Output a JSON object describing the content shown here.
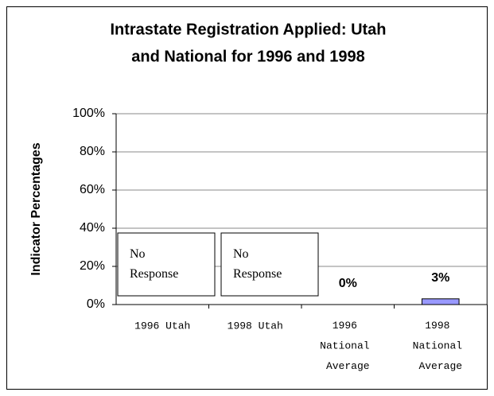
{
  "chart_data": {
    "type": "bar",
    "title": [
      "Intrastate Registration Applied: Utah",
      "and National for 1996 and 1998"
    ],
    "y_label": "Indicator Percentages",
    "categories": [
      "1996 Utah",
      "1998 Utah",
      "1996 National Average",
      "1998 National Average"
    ],
    "values": [
      null,
      null,
      0,
      3
    ],
    "value_labels": [
      null,
      null,
      "0%",
      "3%"
    ],
    "annotations": [
      "No Response",
      "No Response"
    ],
    "color": "#9999ff",
    "ylim": [
      0,
      100
    ],
    "yticks": [
      {
        "value": 0,
        "label": "0%"
      },
      {
        "value": 20,
        "label": "20%"
      },
      {
        "value": 40,
        "label": "40%"
      },
      {
        "value": 60,
        "label": "60%"
      },
      {
        "value": 80,
        "label": "80%"
      },
      {
        "value": 100,
        "label": "100%"
      }
    ],
    "grid": true
  }
}
